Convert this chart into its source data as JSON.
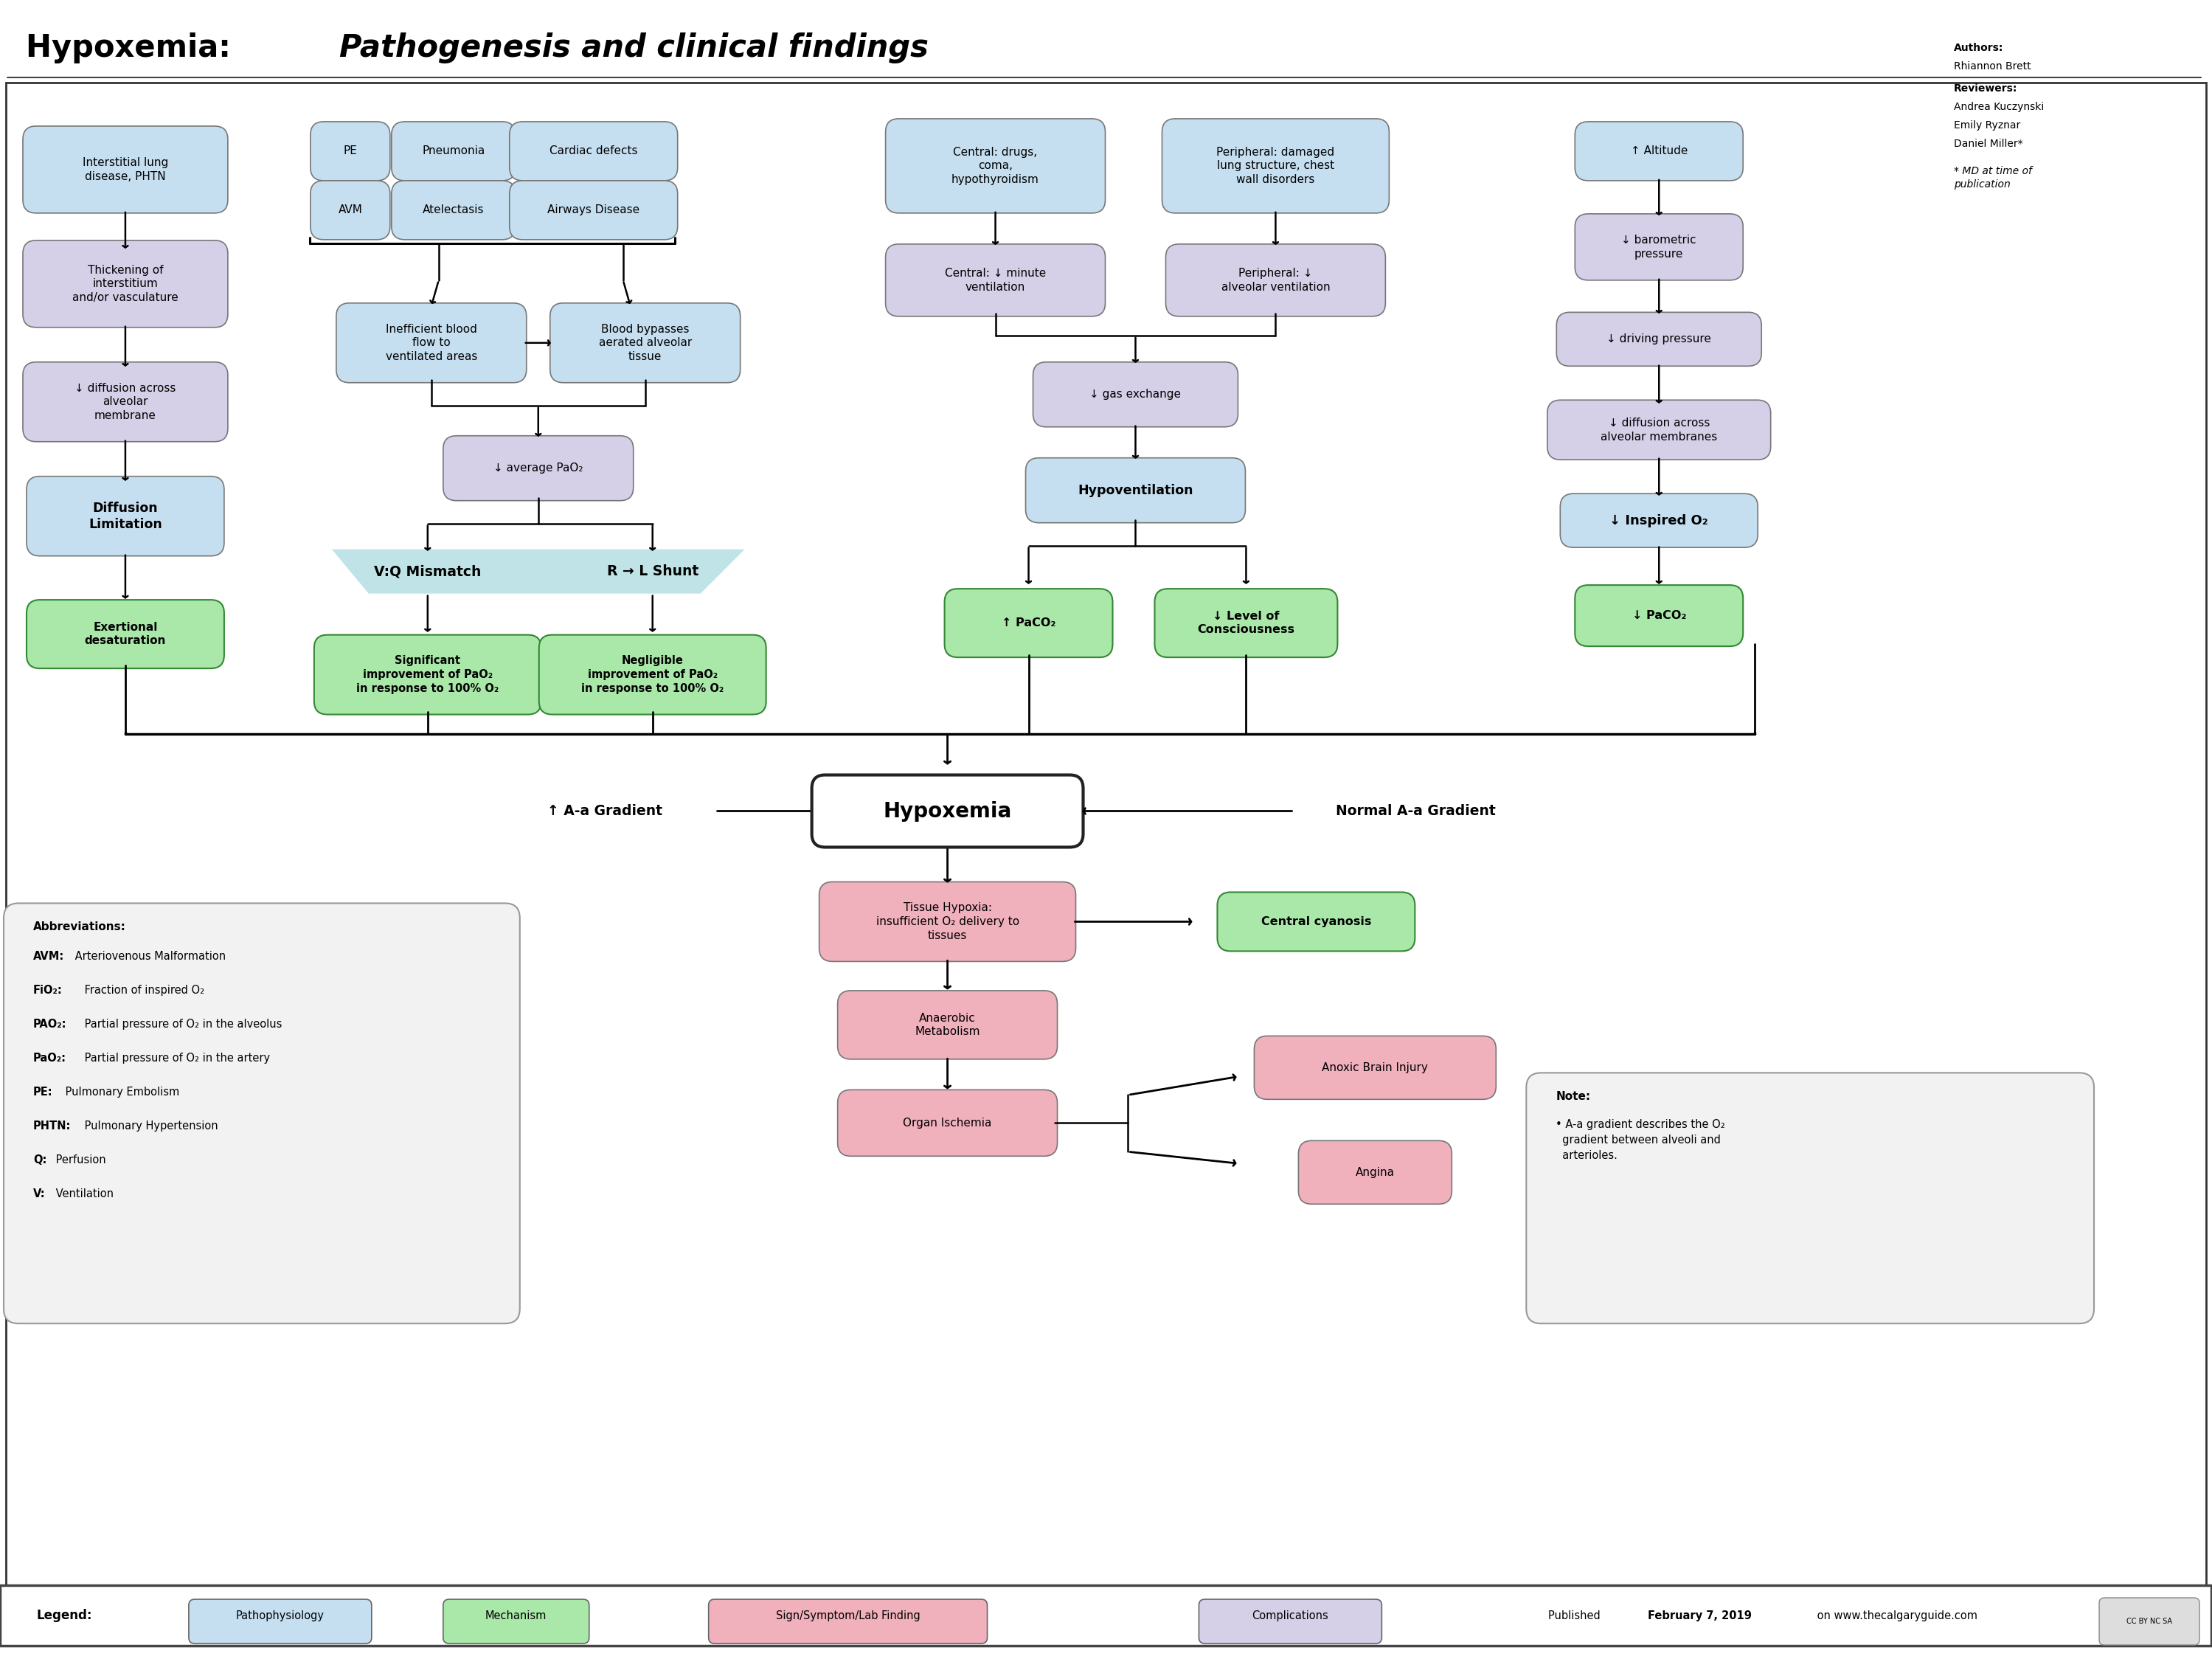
{
  "bg": "#ffffff",
  "blue": "#c5dff0",
  "purple": "#d5cfe8",
  "green": "#aae8aa",
  "pink": "#f0b0bc",
  "gray_box": "#eeeeee",
  "title1": "Hypoxemia: ",
  "title2": "Pathogenesis and clinical findings",
  "legend_labels": [
    "Pathophysiology",
    "Mechanism",
    "Sign/Symptom/Lab Finding",
    "Complications"
  ],
  "legend_colors": [
    "#c5dff0",
    "#aae8aa",
    "#f0b0bc",
    "#d5cfe8"
  ],
  "footer": "Published February 7, 2019 on www.thecalgaryguide.com"
}
